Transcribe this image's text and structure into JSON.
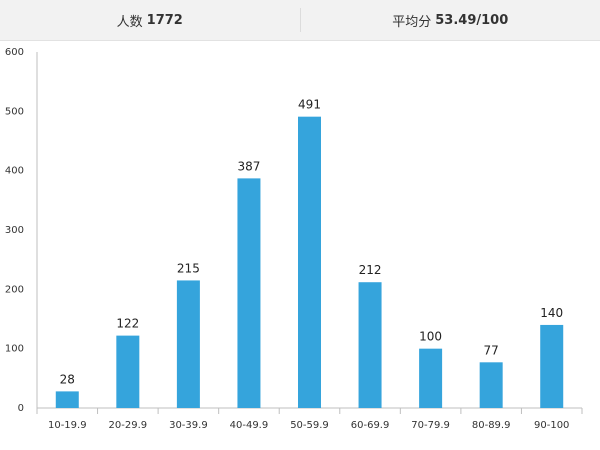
{
  "header": {
    "people_label": "人数",
    "people_value": "1772",
    "avg_label": "平均分",
    "avg_value": "53.49/100"
  },
  "colors": {
    "bar": "#35a4dc",
    "axis": "#bfbfbf",
    "header_bg": "#f2f2f2"
  },
  "chart_data": {
    "type": "bar",
    "categories": [
      "10-19.9",
      "20-29.9",
      "30-39.9",
      "40-49.9",
      "50-59.9",
      "60-69.9",
      "70-79.9",
      "80-89.9",
      "90-100"
    ],
    "values": [
      28,
      122,
      215,
      387,
      491,
      212,
      100,
      77,
      140
    ],
    "ylim": [
      0,
      600
    ],
    "yticks": [
      0,
      100,
      200,
      300,
      400,
      500,
      600
    ],
    "title": "",
    "xlabel": "",
    "ylabel": "",
    "grid": false
  }
}
